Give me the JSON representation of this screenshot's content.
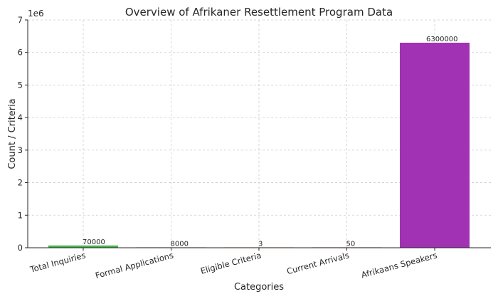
{
  "chart_data": {
    "type": "bar",
    "title": "Overview of Afrikaner Resettlement Program Data",
    "xlabel": "Categories",
    "ylabel": "Count / Criteria",
    "y_multiplier_label": "1e6",
    "categories": [
      "Total Inquiries",
      "Formal Applications",
      "Eligible Criteria",
      "Current Arrivals",
      "Afrikaans Speakers"
    ],
    "values": [
      70000,
      8000,
      3,
      50,
      6300000
    ],
    "data_labels": [
      "70000",
      "8000",
      "3",
      "50",
      "6300000"
    ],
    "colors": [
      "#3cb043",
      "#2e86c1",
      "#e67e22",
      "#c0392b",
      "#9b27af"
    ],
    "ylim": [
      0,
      7000000
    ],
    "yticks": [
      0,
      1000000,
      2000000,
      3000000,
      4000000,
      5000000,
      6000000,
      7000000
    ],
    "ytick_labels": [
      "0",
      "1",
      "2",
      "3",
      "4",
      "5",
      "6",
      "7"
    ],
    "grid": true,
    "legend": "none"
  }
}
